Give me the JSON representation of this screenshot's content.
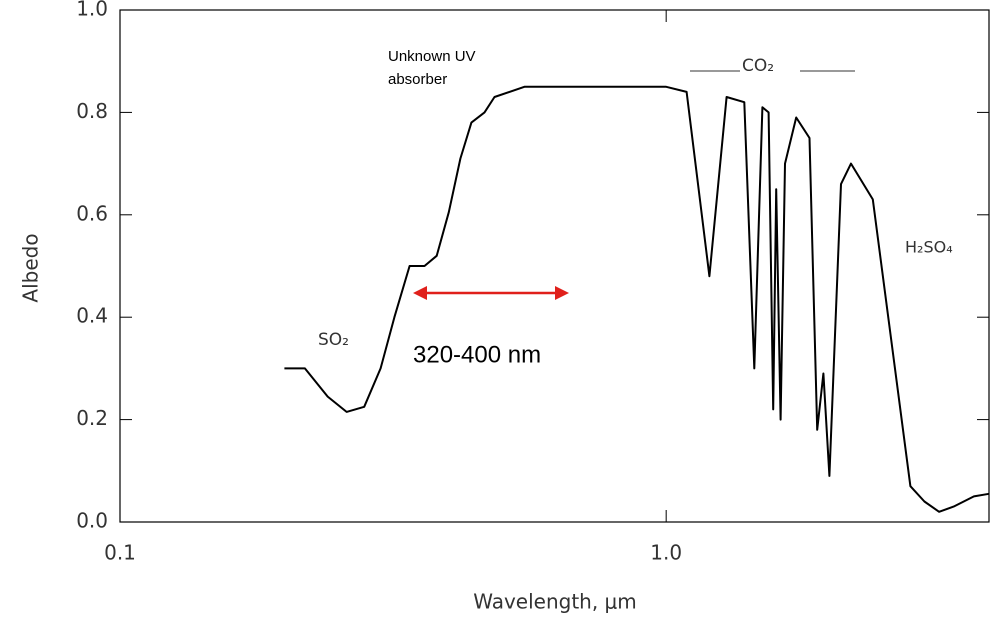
{
  "chart_data": {
    "type": "line",
    "xlabel": "Wavelength, μm",
    "ylabel": "Albedo",
    "x": [
      0.2,
      0.218,
      0.24,
      0.26,
      0.28,
      0.3,
      0.318,
      0.339,
      0.361,
      0.38,
      0.4,
      0.42,
      0.44,
      0.465,
      0.485,
      0.55,
      1.0,
      1.09,
      1.2,
      1.29,
      1.39,
      1.45,
      1.5,
      1.54,
      1.57,
      1.59,
      1.62,
      1.65,
      1.73,
      1.83,
      1.89,
      1.94,
      1.99,
      2.09,
      2.18,
      2.39,
      2.8,
      2.97,
      3.16,
      3.36,
      3.66,
      3.9
    ],
    "series": [
      {
        "color": "#000000",
        "values": [
          0.3,
          0.3,
          0.245,
          0.215,
          0.225,
          0.3,
          0.4,
          0.5,
          0.5,
          0.52,
          0.605,
          0.71,
          0.78,
          0.8,
          0.83,
          0.85,
          0.85,
          0.84,
          0.48,
          0.83,
          0.82,
          0.3,
          0.81,
          0.8,
          0.22,
          0.65,
          0.2,
          0.7,
          0.79,
          0.75,
          0.18,
          0.29,
          0.09,
          0.66,
          0.7,
          0.63,
          0.07,
          0.04,
          0.02,
          0.03,
          0.05,
          0.055
        ]
      }
    ],
    "xlim": [
      0.1,
      3.9
    ],
    "xscale": "log",
    "xticks": [
      0.1,
      {
        "value": 1,
        "label": "1.0"
      }
    ],
    "ylim": [
      0,
      1
    ],
    "yticks": [
      {
        "value": 0,
        "label": "0.0"
      },
      0.2,
      0.4,
      0.6,
      0.8,
      {
        "value": 1,
        "label": "1.0"
      }
    ],
    "annotations": [
      "Unknown UV",
      "absorber",
      "CO₂",
      "H₂SO₄",
      "SO₂",
      "320-400 nm"
    ]
  }
}
